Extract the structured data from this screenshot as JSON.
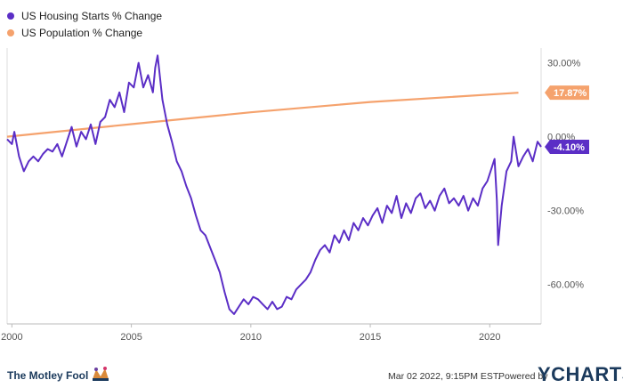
{
  "colors": {
    "housing": "#5b2ec6",
    "population": "#f5a26d",
    "axis": "#cccccc",
    "text": "#555555"
  },
  "legend": [
    {
      "label": "US Housing Starts % Change",
      "color": "#5b2ec6"
    },
    {
      "label": "US Population % Change",
      "color": "#f5a26d"
    }
  ],
  "footer": {
    "brand": "The Motley Fool",
    "brand_icon": "jester-hat-icon",
    "timestamp": "Mar 02 2022, 9:15PM EST.",
    "powered_by": "Powered by",
    "provider": "YCHARTS"
  },
  "chart_data": {
    "type": "line",
    "xlim": [
      1999.8,
      2022.15
    ],
    "ylim": [
      -76,
      36
    ],
    "x_ticks": [
      2000,
      2005,
      2010,
      2015,
      2020
    ],
    "x_tick_labels": [
      "2000",
      "2005",
      "2010",
      "2015",
      "2020"
    ],
    "y_ticks": [
      30,
      0,
      -30,
      -60
    ],
    "y_tick_labels": [
      "30.00%",
      "0.00%",
      "-30.00%",
      "-60.00%"
    ],
    "series": [
      {
        "name": "US Housing Starts % Change",
        "color": "#5b2ec6",
        "end_label": "-4.10%",
        "points": [
          [
            1999.8,
            -1
          ],
          [
            2000.0,
            -3
          ],
          [
            2000.1,
            2
          ],
          [
            2000.3,
            -8
          ],
          [
            2000.5,
            -14
          ],
          [
            2000.7,
            -10
          ],
          [
            2000.9,
            -8
          ],
          [
            2001.1,
            -10
          ],
          [
            2001.3,
            -7
          ],
          [
            2001.5,
            -5
          ],
          [
            2001.7,
            -6
          ],
          [
            2001.9,
            -3
          ],
          [
            2002.1,
            -8
          ],
          [
            2002.3,
            -2
          ],
          [
            2002.5,
            4
          ],
          [
            2002.7,
            -4
          ],
          [
            2002.9,
            2
          ],
          [
            2003.1,
            -1
          ],
          [
            2003.3,
            5
          ],
          [
            2003.5,
            -3
          ],
          [
            2003.7,
            6
          ],
          [
            2003.9,
            8
          ],
          [
            2004.1,
            15
          ],
          [
            2004.3,
            12
          ],
          [
            2004.5,
            18
          ],
          [
            2004.7,
            10
          ],
          [
            2004.9,
            22
          ],
          [
            2005.1,
            20
          ],
          [
            2005.3,
            30
          ],
          [
            2005.5,
            20
          ],
          [
            2005.7,
            25
          ],
          [
            2005.9,
            18
          ],
          [
            2006.0,
            28
          ],
          [
            2006.1,
            33
          ],
          [
            2006.3,
            15
          ],
          [
            2006.5,
            5
          ],
          [
            2006.7,
            -2
          ],
          [
            2006.9,
            -10
          ],
          [
            2007.1,
            -14
          ],
          [
            2007.3,
            -20
          ],
          [
            2007.5,
            -25
          ],
          [
            2007.7,
            -32
          ],
          [
            2007.9,
            -38
          ],
          [
            2008.1,
            -40
          ],
          [
            2008.3,
            -45
          ],
          [
            2008.5,
            -50
          ],
          [
            2008.7,
            -55
          ],
          [
            2008.9,
            -63
          ],
          [
            2009.1,
            -70
          ],
          [
            2009.3,
            -72
          ],
          [
            2009.5,
            -69
          ],
          [
            2009.7,
            -66
          ],
          [
            2009.9,
            -68
          ],
          [
            2010.1,
            -65
          ],
          [
            2010.3,
            -66
          ],
          [
            2010.5,
            -68
          ],
          [
            2010.7,
            -70
          ],
          [
            2010.9,
            -67
          ],
          [
            2011.1,
            -70
          ],
          [
            2011.3,
            -69
          ],
          [
            2011.5,
            -65
          ],
          [
            2011.7,
            -66
          ],
          [
            2011.9,
            -62
          ],
          [
            2012.1,
            -60
          ],
          [
            2012.3,
            -58
          ],
          [
            2012.5,
            -55
          ],
          [
            2012.7,
            -50
          ],
          [
            2012.9,
            -46
          ],
          [
            2013.1,
            -44
          ],
          [
            2013.3,
            -47
          ],
          [
            2013.5,
            -40
          ],
          [
            2013.7,
            -43
          ],
          [
            2013.9,
            -38
          ],
          [
            2014.1,
            -42
          ],
          [
            2014.3,
            -35
          ],
          [
            2014.5,
            -38
          ],
          [
            2014.7,
            -33
          ],
          [
            2014.9,
            -36
          ],
          [
            2015.1,
            -32
          ],
          [
            2015.3,
            -29
          ],
          [
            2015.5,
            -35
          ],
          [
            2015.7,
            -28
          ],
          [
            2015.9,
            -31
          ],
          [
            2016.1,
            -24
          ],
          [
            2016.3,
            -33
          ],
          [
            2016.5,
            -27
          ],
          [
            2016.7,
            -31
          ],
          [
            2016.9,
            -25
          ],
          [
            2017.1,
            -23
          ],
          [
            2017.3,
            -29
          ],
          [
            2017.5,
            -26
          ],
          [
            2017.7,
            -30
          ],
          [
            2017.9,
            -24
          ],
          [
            2018.1,
            -21
          ],
          [
            2018.3,
            -27
          ],
          [
            2018.5,
            -25
          ],
          [
            2018.7,
            -28
          ],
          [
            2018.9,
            -24
          ],
          [
            2019.1,
            -30
          ],
          [
            2019.3,
            -25
          ],
          [
            2019.5,
            -28
          ],
          [
            2019.7,
            -21
          ],
          [
            2019.9,
            -18
          ],
          [
            2020.1,
            -12
          ],
          [
            2020.2,
            -9
          ],
          [
            2020.3,
            -26
          ],
          [
            2020.35,
            -44
          ],
          [
            2020.5,
            -28
          ],
          [
            2020.7,
            -14
          ],
          [
            2020.9,
            -10
          ],
          [
            2021.0,
            0
          ],
          [
            2021.2,
            -12
          ],
          [
            2021.4,
            -8
          ],
          [
            2021.6,
            -5
          ],
          [
            2021.8,
            -10
          ],
          [
            2022.0,
            -2
          ],
          [
            2022.15,
            -4.1
          ]
        ]
      },
      {
        "name": "US Population % Change",
        "color": "#f5a26d",
        "end_label": "17.87%",
        "points": [
          [
            1999.8,
            0
          ],
          [
            2005,
            5.1
          ],
          [
            2010,
            9.9
          ],
          [
            2015,
            14.1
          ],
          [
            2021.2,
            17.87
          ]
        ]
      }
    ]
  }
}
